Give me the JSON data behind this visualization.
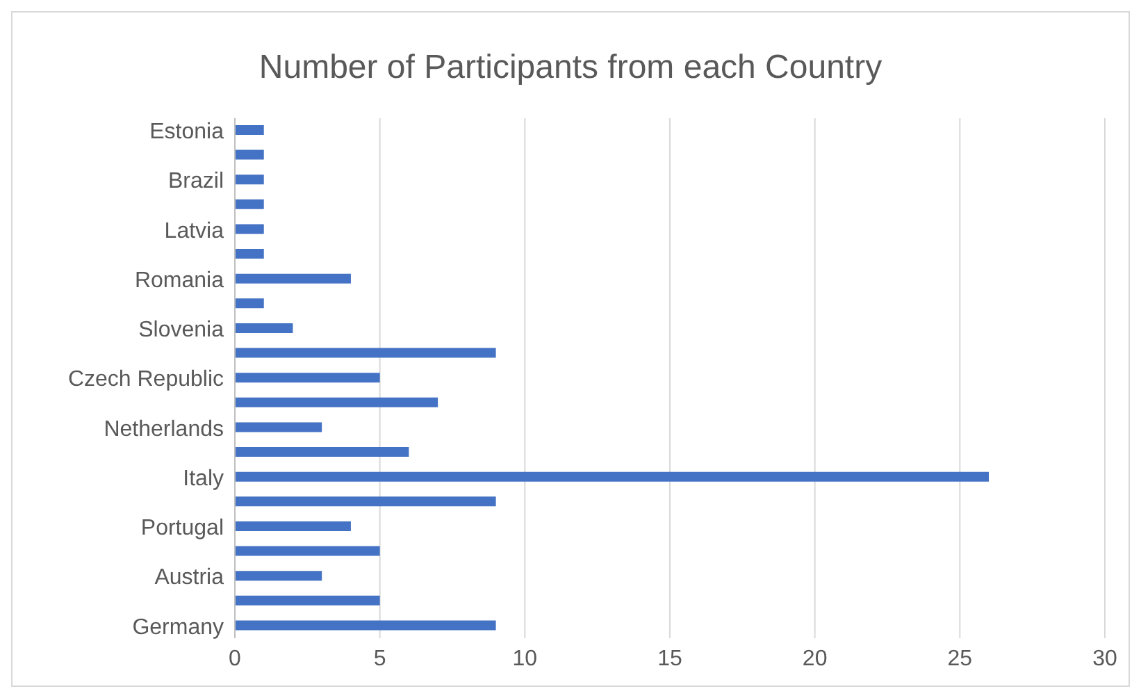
{
  "chart_data": {
    "type": "bar",
    "orientation": "horizontal",
    "title": "Number of Participants from each Country",
    "categories": [
      "Estonia",
      null,
      "Brazil",
      null,
      "Latvia",
      null,
      "Romania",
      null,
      "Slovenia",
      null,
      "Czech Republic",
      null,
      "Netherlands",
      null,
      "Italy",
      null,
      "Portugal",
      null,
      "Austria",
      null,
      "Germany"
    ],
    "values": [
      1,
      1,
      1,
      1,
      1,
      1,
      4,
      1,
      2,
      9,
      5,
      7,
      3,
      6,
      26,
      9,
      4,
      5,
      3,
      5,
      9
    ],
    "color": "#4472c4",
    "xlim": [
      0,
      30
    ],
    "xticks": [
      0,
      5,
      10,
      15,
      20,
      25,
      30
    ],
    "grid": "x"
  }
}
